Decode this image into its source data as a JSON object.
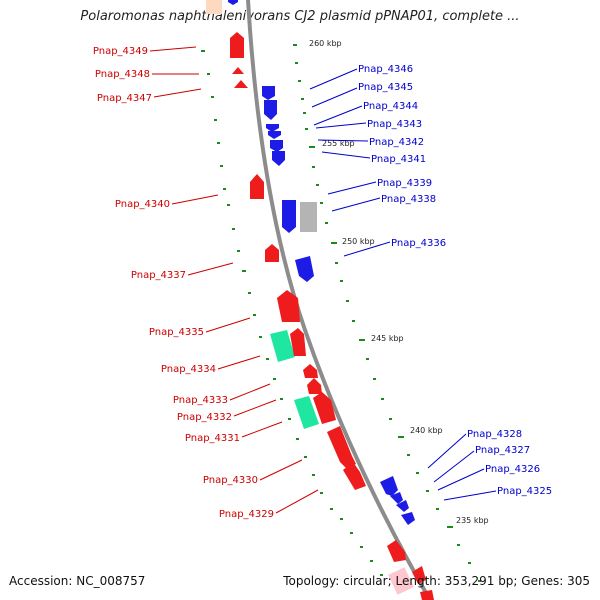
{
  "title": "Polaromonas naphthalenivorans CJ2 plasmid pPNAP01, complete ...",
  "footer": {
    "accession_label": "Accession:",
    "accession": "NC_008757",
    "topology_label": "Topology:",
    "topology": "circular",
    "length_label": "Length:",
    "length": "353,291 bp",
    "genes_label": "Genes:",
    "genes": "305"
  },
  "colors": {
    "backbone": "#8c8c8c",
    "forward_gene": "#ee1c1c",
    "reverse_gene": "#1c1ce6",
    "green_gene": "#1fe6a0",
    "grey_gene": "#b4b4b4",
    "tick": "#1a8a1a",
    "label_left": "#cc0000",
    "label_right": "#0000cc"
  },
  "kbp_ticks": [
    "260 kbp",
    "255 kbp",
    "250 kbp",
    "245 kbp",
    "240 kbp",
    "235 kbp"
  ],
  "left_labels": [
    "Pnap_4349",
    "Pnap_4348",
    "Pnap_4347",
    "Pnap_4340",
    "Pnap_4337",
    "Pnap_4335",
    "Pnap_4334",
    "Pnap_4333",
    "Pnap_4332",
    "Pnap_4331",
    "Pnap_4330",
    "Pnap_4329"
  ],
  "right_labels": [
    "Pnap_4346",
    "Pnap_4345",
    "Pnap_4344",
    "Pnap_4343",
    "Pnap_4342",
    "Pnap_4341",
    "Pnap_4339",
    "Pnap_4338",
    "Pnap_4336",
    "Pnap_4328",
    "Pnap_4327",
    "Pnap_4326",
    "Pnap_4325"
  ]
}
